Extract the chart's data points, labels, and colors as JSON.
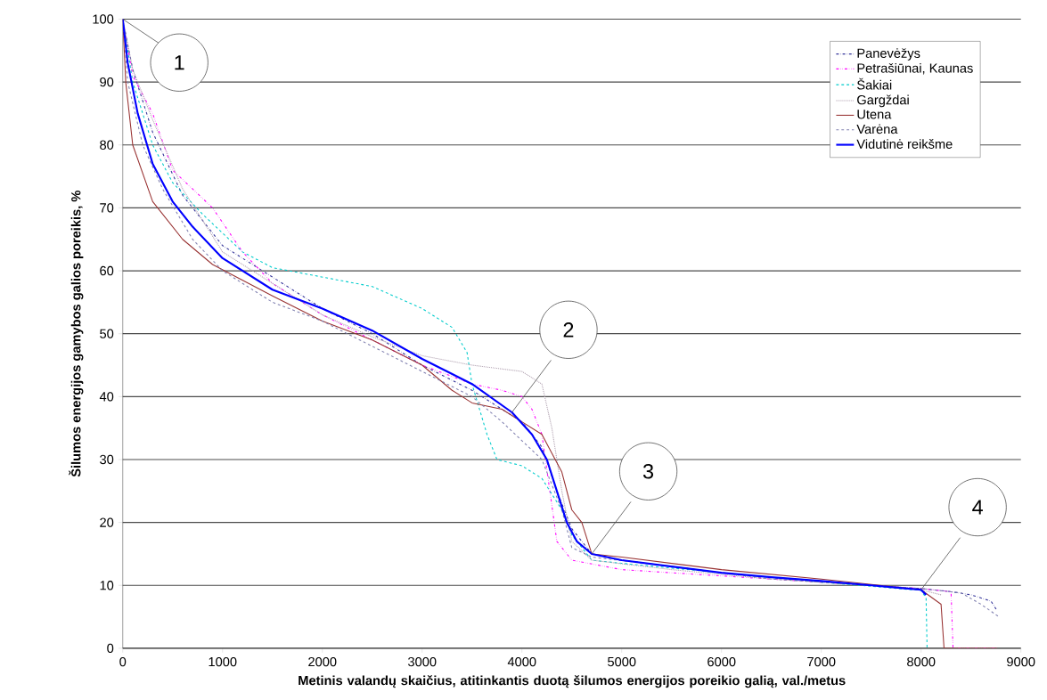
{
  "chart_data": {
    "type": "line",
    "xlabel": "Metinis valandų skaičius, atitinkantis duotą šilumos energijos poreikio galią, val./metus",
    "ylabel": "Šilumos energijos gamybos galios poreikis, %",
    "xlim": [
      0,
      9000
    ],
    "ylim": [
      0,
      100
    ],
    "xticks": [
      0,
      1000,
      2000,
      3000,
      4000,
      5000,
      6000,
      7000,
      8000,
      9000
    ],
    "yticks": [
      0,
      10,
      20,
      30,
      40,
      50,
      60,
      70,
      80,
      90,
      100
    ],
    "grid": "y",
    "legend": "top right",
    "series": [
      {
        "name": "Panevėžys",
        "color": "#333399",
        "line_style": "dashdot",
        "x": [
          0,
          100,
          300,
          600,
          1000,
          1500,
          2000,
          2500,
          3000,
          3500,
          4000,
          4200,
          4350,
          4500,
          4700,
          5000,
          6000,
          7000,
          8000,
          8300,
          8500,
          8700,
          8760
        ],
        "values": [
          100,
          92,
          82,
          72,
          64,
          59,
          54,
          50,
          45,
          41,
          36,
          32,
          25,
          19,
          15,
          14,
          12,
          10.5,
          9.5,
          9,
          8.5,
          7.5,
          6
        ]
      },
      {
        "name": "Petrašiūnai, Kaunas",
        "color": "#ff00ff",
        "line_style": "dashdotdot",
        "x": [
          0,
          100,
          300,
          500,
          700,
          900,
          1200,
          1500,
          2000,
          2500,
          3000,
          3500,
          3800,
          4000,
          4100,
          4200,
          4280,
          4350,
          4500,
          5000,
          6000,
          7000,
          8000,
          8300,
          8320,
          8760
        ],
        "values": [
          100,
          91,
          85,
          76,
          73,
          70,
          63,
          58,
          53,
          49,
          45,
          42,
          41,
          40,
          38,
          34,
          25,
          17,
          14,
          12.5,
          11.5,
          10.5,
          9.5,
          9,
          0,
          0
        ]
      },
      {
        "name": "Šakiai",
        "color": "#00cccc",
        "line_style": "dashed",
        "x": [
          0,
          100,
          300,
          500,
          800,
          1200,
          1500,
          2000,
          2500,
          3000,
          3300,
          3450,
          3500,
          3650,
          3750,
          4000,
          4200,
          4400,
          4500,
          4700,
          5000,
          6000,
          7000,
          8000,
          8050,
          8060
        ],
        "values": [
          100,
          90,
          80,
          74,
          69,
          63,
          60.5,
          59,
          57.5,
          54,
          51,
          47,
          42,
          34,
          30,
          29,
          27,
          22,
          18,
          14,
          13.5,
          12,
          10.5,
          9.2,
          8,
          0
        ]
      },
      {
        "name": "Gargždai",
        "color": "#b0a0b0",
        "line_style": "dotted",
        "x": [
          0,
          100,
          300,
          600,
          1000,
          1500,
          2000,
          2500,
          3000,
          3500,
          4000,
          4200,
          4300,
          4400,
          4500,
          4700,
          5500,
          6500,
          7500,
          8000,
          8200
        ],
        "values": [
          100,
          92,
          84,
          73,
          63,
          58,
          53,
          49.5,
          46.5,
          45,
          44,
          42,
          35,
          25,
          17,
          14,
          12.5,
          11,
          10,
          9.3,
          8.5
        ]
      },
      {
        "name": "Utena",
        "color": "#993333",
        "line_style": "solid",
        "x": [
          0,
          30,
          100,
          300,
          600,
          900,
          1500,
          2000,
          2500,
          3000,
          3300,
          3500,
          3800,
          4000,
          4200,
          4400,
          4500,
          4600,
          4700,
          5000,
          6000,
          7000,
          8000,
          8200,
          8230,
          8760
        ],
        "values": [
          100,
          90,
          80,
          71,
          65,
          61,
          56,
          52,
          49,
          45,
          41,
          39,
          38,
          36,
          34,
          28,
          22,
          20,
          15,
          14.5,
          12.5,
          11,
          9.3,
          7,
          0,
          0
        ]
      },
      {
        "name": "Varėna",
        "color": "#8080b0",
        "line_style": "dashed",
        "x": [
          0,
          50,
          200,
          400,
          700,
          1000,
          1500,
          2000,
          2500,
          3000,
          3500,
          3800,
          4000,
          4200,
          4400,
          4500,
          4700,
          5500,
          6500,
          7500,
          8000,
          8400,
          8600,
          8780
        ],
        "values": [
          100,
          90,
          80,
          73,
          65,
          60,
          55,
          52,
          48,
          44,
          40,
          36,
          33,
          30,
          22,
          16,
          14.5,
          13,
          11,
          10,
          9.5,
          8.8,
          7,
          5
        ]
      },
      {
        "name": "Vidutinė reikšme",
        "color": "#0000ff",
        "line_style": "solid",
        "x": [
          0,
          50,
          150,
          300,
          500,
          700,
          1000,
          1500,
          2000,
          2500,
          3000,
          3500,
          3900,
          4100,
          4250,
          4350,
          4450,
          4550,
          4700,
          5000,
          5500,
          6000,
          6500,
          7000,
          7500,
          8000,
          8050
        ],
        "values": [
          100,
          93,
          85,
          77,
          71,
          67,
          62,
          57,
          54,
          50.5,
          46,
          42,
          37.5,
          34,
          30,
          25,
          20,
          17,
          15,
          14,
          13,
          12,
          11.3,
          10.7,
          10,
          9.3,
          8.5
        ]
      }
    ],
    "annotations": [
      {
        "text": "1",
        "x": 0,
        "y": 100
      },
      {
        "text": "2",
        "x": 3900,
        "y": 37.5
      },
      {
        "text": "3",
        "x": 4700,
        "y": 15
      },
      {
        "text": "4",
        "x": 8000,
        "y": 9.3
      }
    ]
  }
}
